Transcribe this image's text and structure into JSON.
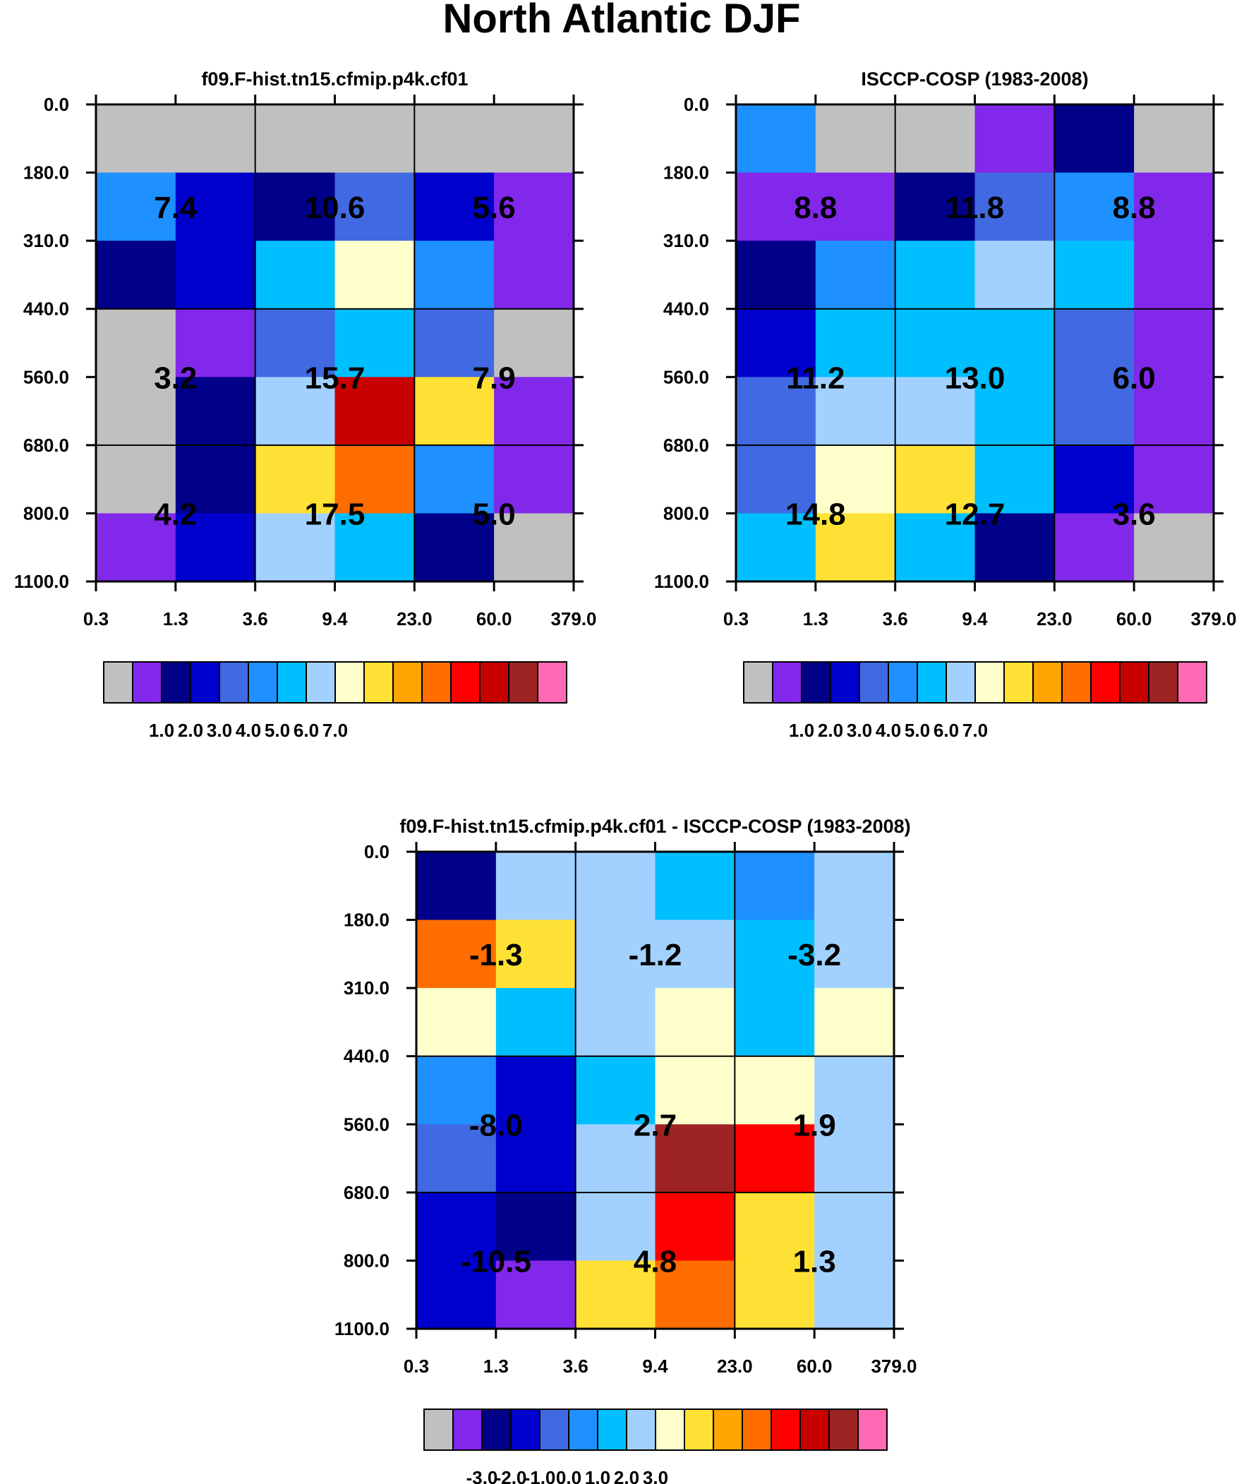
{
  "figure": {
    "title": "North Atlantic DJF"
  },
  "colors": {
    "model_palette": [
      "#c0c0c0",
      "#8228eb",
      "#000088",
      "#0000cd",
      "#4169e1",
      "#1e90ff",
      "#00bfff",
      "#a3d1ff",
      "#ffffcc",
      "#ffe135",
      "#ffa500",
      "#ff6d00",
      "#ff0000",
      "#c80000",
      "#9e2323",
      "#ff69b4"
    ],
    "diff_palette": [
      "#c0c0c0",
      "#8228eb",
      "#000088",
      "#0000cd",
      "#4169e1",
      "#1e90ff",
      "#00bfff",
      "#a3d1ff",
      "#ffffcc",
      "#ffe135",
      "#ffa500",
      "#ff6d00",
      "#ff0000",
      "#c80000",
      "#9e2323",
      "#ff69b4"
    ]
  },
  "chart_data": [
    {
      "type": "heatmap",
      "title": "f09.F-hist.tn15.cfmip.p4k.cf01",
      "x_ticks": [
        "0.3",
        "1.3",
        "3.6",
        "9.4",
        "23.0",
        "60.0",
        "379.0"
      ],
      "y_ticks": [
        "0.0",
        "180.0",
        "310.0",
        "440.0",
        "560.0",
        "680.0",
        "800.0",
        "1100.0"
      ],
      "grid": true,
      "cell_colors": [
        [
          "#c0c0c0",
          "#c0c0c0",
          "#c0c0c0",
          "#c0c0c0",
          "#c0c0c0",
          "#c0c0c0"
        ],
        [
          "#1e90ff",
          "#0000cd",
          "#000088",
          "#4169e1",
          "#0000cd",
          "#8228eb"
        ],
        [
          "#000088",
          "#0000cd",
          "#00bfff",
          "#ffffcc",
          "#1e90ff",
          "#8228eb"
        ],
        [
          "#c0c0c0",
          "#8228eb",
          "#4169e1",
          "#00bfff",
          "#4169e1",
          "#c0c0c0"
        ],
        [
          "#c0c0c0",
          "#000088",
          "#a3d1ff",
          "#c80000",
          "#ffe135",
          "#8228eb"
        ],
        [
          "#c0c0c0",
          "#000088",
          "#ffe135",
          "#ff6d00",
          "#1e90ff",
          "#8228eb"
        ],
        [
          "#8228eb",
          "#0000cd",
          "#a3d1ff",
          "#00bfff",
          "#000088",
          "#c0c0c0"
        ]
      ],
      "box_labels": [
        [
          "7.4",
          "10.6",
          "5.6"
        ],
        [
          "3.2",
          "15.7",
          "7.9"
        ],
        [
          "4.2",
          "17.5",
          "5.0"
        ]
      ],
      "colorbar_labels": [
        "1.0",
        "2.0",
        "3.0",
        "4.0",
        "5.0",
        "6.0",
        "7.0"
      ]
    },
    {
      "type": "heatmap",
      "title": "ISCCP-COSP (1983-2008)",
      "x_ticks": [
        "0.3",
        "1.3",
        "3.6",
        "9.4",
        "23.0",
        "60.0",
        "379.0"
      ],
      "y_ticks": [
        "0.0",
        "180.0",
        "310.0",
        "440.0",
        "560.0",
        "680.0",
        "800.0",
        "1100.0"
      ],
      "grid": true,
      "cell_colors": [
        [
          "#1e90ff",
          "#c0c0c0",
          "#c0c0c0",
          "#8228eb",
          "#000088",
          "#c0c0c0"
        ],
        [
          "#8228eb",
          "#8228eb",
          "#000088",
          "#4169e1",
          "#1e90ff",
          "#8228eb"
        ],
        [
          "#000088",
          "#1e90ff",
          "#00bfff",
          "#a3d1ff",
          "#00bfff",
          "#8228eb"
        ],
        [
          "#0000cd",
          "#00bfff",
          "#00bfff",
          "#00bfff",
          "#4169e1",
          "#8228eb"
        ],
        [
          "#4169e1",
          "#a3d1ff",
          "#a3d1ff",
          "#00bfff",
          "#4169e1",
          "#8228eb"
        ],
        [
          "#4169e1",
          "#ffffcc",
          "#ffe135",
          "#00bfff",
          "#0000cd",
          "#8228eb"
        ],
        [
          "#00bfff",
          "#ffe135",
          "#00bfff",
          "#000088",
          "#8228eb",
          "#c0c0c0"
        ]
      ],
      "box_labels": [
        [
          "8.8",
          "11.8",
          "8.8"
        ],
        [
          "11.2",
          "13.0",
          "6.0"
        ],
        [
          "14.8",
          "12.7",
          "3.6"
        ]
      ],
      "colorbar_labels": [
        "1.0",
        "2.0",
        "3.0",
        "4.0",
        "5.0",
        "6.0",
        "7.0"
      ]
    },
    {
      "type": "heatmap",
      "title": "f09.F-hist.tn15.cfmip.p4k.cf01 - ISCCP-COSP (1983-2008)",
      "x_ticks": [
        "0.3",
        "1.3",
        "3.6",
        "9.4",
        "23.0",
        "60.0",
        "379.0"
      ],
      "y_ticks": [
        "0.0",
        "180.0",
        "310.0",
        "440.0",
        "560.0",
        "680.0",
        "800.0",
        "1100.0"
      ],
      "grid": true,
      "cell_colors": [
        [
          "#000088",
          "#a3d1ff",
          "#a3d1ff",
          "#00bfff",
          "#1e90ff",
          "#a3d1ff"
        ],
        [
          "#ff6d00",
          "#ffe135",
          "#a3d1ff",
          "#a3d1ff",
          "#00bfff",
          "#a3d1ff"
        ],
        [
          "#ffffcc",
          "#00bfff",
          "#a3d1ff",
          "#ffffcc",
          "#00bfff",
          "#ffffcc"
        ],
        [
          "#1e90ff",
          "#0000cd",
          "#00bfff",
          "#ffffcc",
          "#ffffcc",
          "#a3d1ff"
        ],
        [
          "#4169e1",
          "#0000cd",
          "#a3d1ff",
          "#9e2323",
          "#ff0000",
          "#a3d1ff"
        ],
        [
          "#0000cd",
          "#000088",
          "#a3d1ff",
          "#ff0000",
          "#ffe135",
          "#a3d1ff"
        ],
        [
          "#0000cd",
          "#8228eb",
          "#ffe135",
          "#ff6d00",
          "#ffe135",
          "#a3d1ff"
        ]
      ],
      "box_labels": [
        [
          "-1.3",
          "-1.2",
          "-3.2"
        ],
        [
          "-8.0",
          "2.7",
          "1.9"
        ],
        [
          "-10.5",
          "4.8",
          "1.3"
        ]
      ],
      "colorbar_labels": [
        "-3.0",
        "-2.0",
        "-1.0",
        "0.0",
        "1.0",
        "2.0",
        "3.0"
      ]
    }
  ]
}
